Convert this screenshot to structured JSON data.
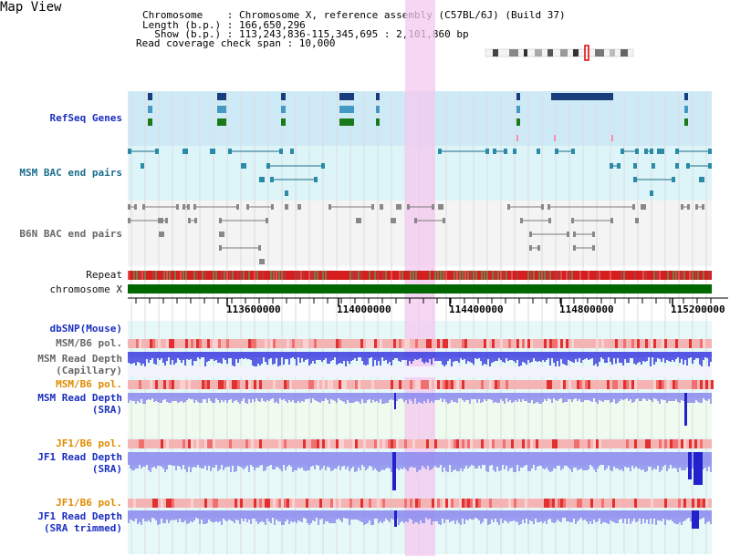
{
  "app": {
    "title": "Map View"
  },
  "info": {
    "chromosome_line": "Chromosome    : Chromosome X, reference assembly (C57BL/6J) (Build 37)",
    "length_line": "Length (b.p.) : 166,650,296",
    "show_line": "  Show (b.p.) : 113,243,836-115,345,695 : 2,101,860 bp",
    "span_line": "Read coverage check span : 10,000"
  },
  "tracks": {
    "refseq": "RefSeq Genes",
    "msm_bac": "MSM BAC end pairs",
    "b6n_bac": "B6N BAC end pairs",
    "repeat": "Repeat",
    "chromosome": "chromosome X",
    "dbsnp": "dbSNP(Mouse)",
    "msm_b6_pol_1": "MSM/B6 pol.",
    "msm_depth_cap_1": "MSM Read Depth",
    "msm_depth_cap_2": "(Capillary)",
    "msm_b6_pol_2": "MSM/B6 pol.",
    "msm_depth_sra_1": "MSM Read Depth",
    "msm_depth_sra_2": "(SRA)",
    "jf1_b6_pol_1": "JF1/B6 pol.",
    "jf1_depth_sra_1": "JF1 Read Depth",
    "jf1_depth_sra_2": "(SRA)",
    "jf1_b6_pol_2": "JF1/B6 pol.",
    "jf1_depth_trim_1": "JF1 Read Depth",
    "jf1_depth_trim_2": "(SRA trimmed)"
  },
  "axis": {
    "ticks": [
      "113600000",
      "114000000",
      "114400000",
      "114800000",
      "115200000"
    ]
  },
  "colors": {
    "refseq_band": "#cfeaf7",
    "bac_band": "#ddf4f8",
    "highlight": "#f4c8f0",
    "repeat_red": "#d61e1e",
    "chromosome_green": "#006600",
    "depth_blue": "#3333dd",
    "depth_light": "#8888ee",
    "pol_pink": "#f5b4b4"
  }
}
